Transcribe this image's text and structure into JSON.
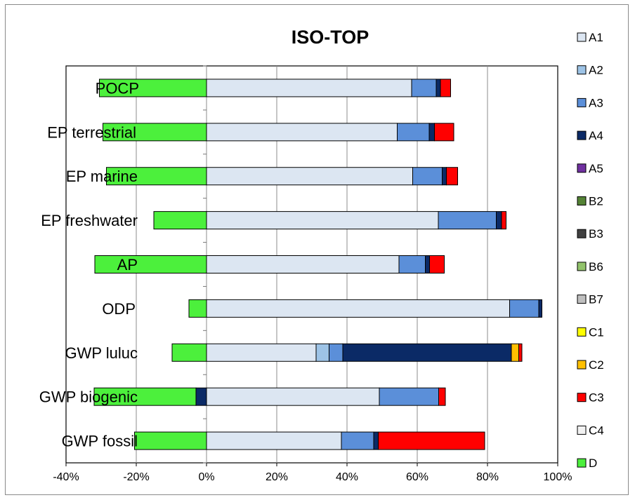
{
  "chart_data": {
    "type": "bar",
    "orientation": "horizontal",
    "stacked": true,
    "title": "ISO-TOP",
    "categories": [
      "POCP",
      "EP terrestrial",
      "EP marine",
      "EP freshwater",
      "AP",
      "ODP",
      "GWP luluc",
      "GWP biogenic",
      "GWP fossil"
    ],
    "x_ticks": [
      "-40%",
      "-20%",
      "0%",
      "20%",
      "40%",
      "60%",
      "80%",
      "100%"
    ],
    "xlim": [
      -40,
      100
    ],
    "grid": "vertical",
    "legend_position": "right",
    "series": [
      {
        "name": "A1",
        "color": "#dce6f2",
        "values": [
          58.4,
          54.3,
          58.7,
          66,
          54.8,
          86.3,
          31.2,
          49.2,
          38.4
        ]
      },
      {
        "name": "A2",
        "color": "#9dc3e6",
        "values": [
          0,
          0,
          0,
          0,
          0,
          0,
          3.7,
          0,
          0
        ]
      },
      {
        "name": "A3",
        "color": "#5b8fd9",
        "values": [
          7,
          9.1,
          8.4,
          16.5,
          7.5,
          8.3,
          3.9,
          16.9,
          9.2
        ]
      },
      {
        "name": "A4",
        "color": "#0b2a66",
        "values": [
          1.2,
          1.5,
          1.2,
          1.5,
          1.2,
          0.9,
          48,
          -3,
          1.3
        ]
      },
      {
        "name": "A5",
        "color": "#7030a0",
        "values": [
          0,
          0,
          0,
          0,
          0,
          0,
          0,
          0,
          0
        ]
      },
      {
        "name": "B2",
        "color": "#548235",
        "values": [
          0,
          0,
          0,
          0,
          0,
          0,
          0,
          0,
          0
        ]
      },
      {
        "name": "B3",
        "color": "#404040",
        "values": [
          0,
          0,
          0,
          0,
          0,
          0,
          0,
          0,
          0
        ]
      },
      {
        "name": "B6",
        "color": "#92c36b",
        "values": [
          0,
          0,
          0,
          0,
          0,
          0,
          0,
          0,
          0
        ]
      },
      {
        "name": "B7",
        "color": "#bfbfbf",
        "values": [
          0,
          0,
          0,
          0,
          0,
          0,
          0,
          0,
          0
        ]
      },
      {
        "name": "C1",
        "color": "#ffff00",
        "values": [
          0,
          0,
          0,
          0,
          0,
          0,
          0,
          0,
          0
        ]
      },
      {
        "name": "C2",
        "color": "#ffc000",
        "values": [
          0,
          0,
          0,
          0,
          0,
          0,
          2.1,
          0,
          0
        ]
      },
      {
        "name": "C3",
        "color": "#ff0000",
        "values": [
          2.9,
          5.5,
          3.2,
          1.3,
          4.2,
          0,
          0.9,
          1.9,
          30.3
        ]
      },
      {
        "name": "C4",
        "color": "#f2f2f2",
        "values": [
          0,
          0,
          0,
          0,
          0,
          0,
          0,
          0,
          0
        ]
      },
      {
        "name": "D",
        "color": "#4cf03c",
        "values": [
          -30.5,
          -29.5,
          -28.5,
          -15,
          -31.8,
          -5,
          -9.8,
          -29,
          -20.5
        ]
      }
    ]
  }
}
